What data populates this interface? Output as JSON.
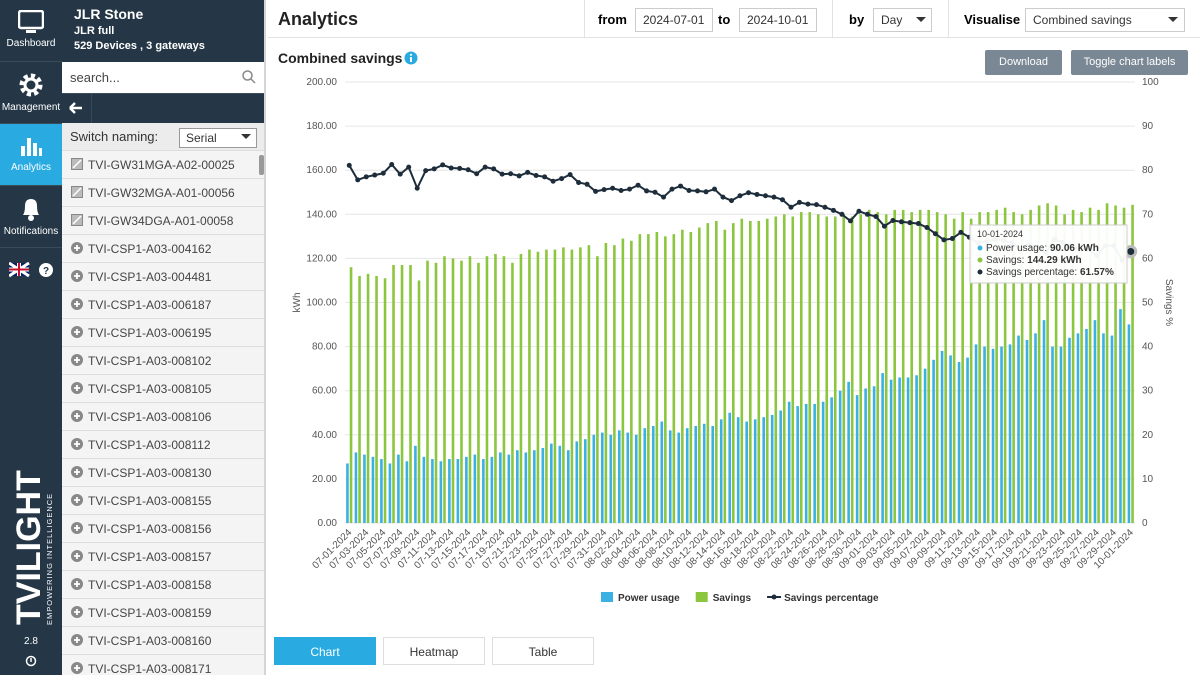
{
  "nav": {
    "items": [
      "Dashboard",
      "Management",
      "Analytics",
      "Notifications"
    ],
    "brand": "TVILIGHT",
    "tagline": "EMPOWERING INTELLIGENCE",
    "version": "2.8"
  },
  "panel": {
    "org": "JLR Stone",
    "group": "JLR full",
    "summary": "529 Devices , 3 gateways",
    "search_placeholder": "search...",
    "naming_label": "Switch naming:",
    "naming_value": "Serial",
    "gateways": [
      "TVI-GW31MGA-A02-00025",
      "TVI-GW32MGA-A01-00056",
      "TVI-GW34DGA-A01-00058"
    ],
    "devices": [
      "TVI-CSP1-A03-004162",
      "TVI-CSP1-A03-004481",
      "TVI-CSP1-A03-006187",
      "TVI-CSP1-A03-006195",
      "TVI-CSP1-A03-008102",
      "TVI-CSP1-A03-008105",
      "TVI-CSP1-A03-008106",
      "TVI-CSP1-A03-008112",
      "TVI-CSP1-A03-008130",
      "TVI-CSP1-A03-008155",
      "TVI-CSP1-A03-008156",
      "TVI-CSP1-A03-008157",
      "TVI-CSP1-A03-008158",
      "TVI-CSP1-A03-008159",
      "TVI-CSP1-A03-008160",
      "TVI-CSP1-A03-008171"
    ]
  },
  "header": {
    "title": "Analytics",
    "from_label": "from",
    "from": "2024-07-01",
    "to_label": "to",
    "to": "2024-10-01",
    "by_label": "by",
    "by": "Day",
    "visualise_label": "Visualise",
    "visualise": "Combined savings"
  },
  "section": {
    "title": "Combined savings",
    "buttons": [
      "Download",
      "Toggle chart labels"
    ]
  },
  "tabs": [
    "Chart",
    "Heatmap",
    "Table"
  ],
  "chart_data": {
    "type": "bar",
    "ylabel": "kWh",
    "y2label": "Savings %",
    "ylim": [
      0,
      200
    ],
    "yticks": [
      {
        "value": 0,
        "label": "0.00"
      },
      {
        "value": 20,
        "label": "20.00"
      },
      {
        "value": 40,
        "label": "40.00"
      },
      {
        "value": 60,
        "label": "60.00"
      },
      {
        "value": 80,
        "label": "80.00"
      },
      {
        "value": 100,
        "label": "100.00"
      },
      {
        "value": 120,
        "label": "120.00"
      },
      {
        "value": 140,
        "label": "140.00"
      },
      {
        "value": 160,
        "label": "160.00"
      },
      {
        "value": 180,
        "label": "180.00"
      },
      {
        "value": 200,
        "label": "200.00"
      }
    ],
    "y2lim": [
      0,
      100
    ],
    "y2ticks": [
      0,
      10,
      20,
      30,
      40,
      50,
      60,
      70,
      80,
      90,
      100
    ],
    "grid": true,
    "legend": "bottom",
    "categories": [
      "07-01-2024",
      null,
      "07-03-2024",
      null,
      "07-05-2024",
      null,
      "07-07-2024",
      null,
      "07-09-2024",
      null,
      "07-11-2024",
      null,
      "07-13-2024",
      null,
      "07-15-2024",
      null,
      "07-17-2024",
      null,
      "07-19-2024",
      null,
      "07-21-2024",
      null,
      "07-23-2024",
      null,
      "07-25-2024",
      null,
      "07-27-2024",
      null,
      "07-29-2024",
      null,
      "07-31-2024",
      null,
      "08-02-2024",
      null,
      "08-04-2024",
      null,
      "08-06-2024",
      null,
      "08-08-2024",
      null,
      "08-10-2024",
      null,
      "08-12-2024",
      null,
      "08-14-2024",
      null,
      "08-16-2024",
      null,
      "08-18-2024",
      null,
      "08-20-2024",
      null,
      "08-22-2024",
      null,
      "08-24-2024",
      null,
      "08-26-2024",
      null,
      "08-28-2024",
      null,
      "08-30-2024",
      null,
      "09-01-2024",
      null,
      "09-03-2024",
      null,
      "09-05-2024",
      null,
      "09-07-2024",
      null,
      "09-09-2024",
      null,
      "09-11-2024",
      null,
      "09-13-2024",
      null,
      "09-15-2024",
      null,
      "09-17-2024",
      null,
      "09-19-2024",
      null,
      "09-21-2024",
      null,
      "09-23-2024",
      null,
      "09-25-2024",
      null,
      "09-27-2024",
      null,
      "09-29-2024",
      null,
      "10-01-2024"
    ],
    "series": [
      {
        "name": "Power usage",
        "color": "#3bb0e3",
        "values": [
          27,
          32,
          31,
          30,
          29,
          27,
          31,
          28,
          35,
          30,
          29,
          28,
          29,
          29,
          30,
          31,
          29,
          30,
          32,
          31,
          33,
          32,
          33,
          34,
          36,
          35,
          33,
          37,
          38,
          40,
          41,
          40,
          42,
          41,
          40,
          43,
          44,
          46,
          42,
          41,
          43,
          44,
          45,
          44,
          47,
          50,
          48,
          46,
          47,
          48,
          49,
          51,
          55,
          53,
          54,
          54,
          55,
          57,
          60,
          64,
          58,
          61,
          62,
          68,
          65,
          66,
          66,
          67,
          70,
          74,
          78,
          76,
          73,
          75,
          81,
          80,
          79,
          80,
          81,
          85,
          83,
          86,
          92,
          80,
          80,
          84,
          86,
          88,
          92,
          86,
          85,
          97,
          90.06
        ]
      },
      {
        "name": "Savings",
        "color": "#8cc63f",
        "values": [
          116,
          112,
          113,
          112,
          111,
          117,
          117,
          117,
          110,
          119,
          118,
          121,
          120,
          119,
          121,
          118,
          121,
          122,
          121,
          118,
          122,
          124,
          123,
          124,
          124,
          125,
          124,
          125,
          126,
          121,
          127,
          126,
          129,
          128,
          131,
          131,
          132,
          130,
          131,
          133,
          132,
          134,
          136,
          137,
          133,
          136,
          138,
          137,
          137,
          138,
          139,
          140,
          139,
          141,
          141,
          140,
          139,
          139,
          140,
          139,
          140,
          142,
          141,
          140,
          142,
          142,
          141,
          142,
          142,
          141,
          140,
          138,
          141,
          138,
          141,
          141,
          142,
          143,
          141,
          140,
          142,
          144,
          145,
          144,
          140,
          142,
          141,
          143,
          142,
          145,
          144,
          143,
          144.29
        ]
      },
      {
        "name": "Savings percentage",
        "color": "#1e2d3b",
        "type": "line",
        "axis": "y2",
        "values": [
          81.1,
          77.8,
          78.5,
          78.9,
          79.3,
          81.3,
          79.1,
          80.7,
          75.9,
          79.9,
          80.3,
          81.2,
          80.5,
          80.4,
          80.1,
          79.2,
          80.7,
          80.3,
          79.1,
          79.2,
          78.7,
          79.5,
          78.8,
          78.5,
          77.5,
          78.1,
          79.0,
          77.2,
          76.8,
          75.2,
          75.6,
          75.9,
          75.4,
          75.7,
          76.6,
          75.3,
          75.0,
          73.9,
          75.7,
          76.4,
          75.4,
          75.3,
          75.1,
          75.7,
          73.9,
          73.1,
          74.2,
          74.9,
          74.5,
          74.2,
          73.9,
          73.3,
          71.6,
          72.7,
          72.3,
          72.2,
          71.6,
          70.9,
          70.0,
          68.5,
          70.7,
          70.0,
          69.5,
          67.3,
          68.6,
          68.3,
          68.1,
          67.9,
          67.0,
          65.6,
          64.2,
          64.5,
          65.9,
          64.8,
          63.5,
          63.8,
          64.3,
          64.1,
          63.5,
          62.2,
          63.1,
          62.6,
          61.2,
          64.3,
          63.6,
          62.8,
          62.1,
          61.9,
          60.7,
          62.8,
          62.9,
          59.6,
          61.57
        ]
      }
    ],
    "tooltip": {
      "items": [
        {
          "label": "Power usage:",
          "value": "90.06 kWh"
        },
        {
          "label": "Savings:",
          "value": "144.29 kWh"
        },
        {
          "label": "Savings percentage:",
          "value": "61.57%"
        }
      ]
    }
  }
}
